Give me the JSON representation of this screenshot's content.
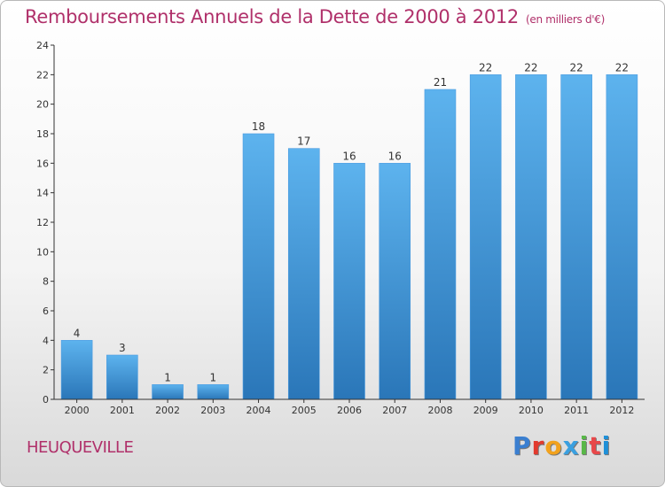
{
  "title": "Remboursements Annuels de la Dette de 2000 à 2012",
  "subtitle": "(en milliers d'€)",
  "commune": "HEUQUEVILLE",
  "logo": {
    "letters": [
      "P",
      "r",
      "o",
      "x",
      "i",
      "t",
      "i"
    ],
    "colors": [
      "#3a7fd0",
      "#e23a2e",
      "#f2a21d",
      "#3aa0e0",
      "#58b848",
      "#e8484a",
      "#1f90d8"
    ]
  },
  "colors": {
    "title": "#b0306a",
    "bar_top": "#5db3ee",
    "bar_bottom": "#2a76b8",
    "axis": "#333333"
  },
  "chart_data": {
    "type": "bar",
    "categories": [
      "2000",
      "2001",
      "2002",
      "2003",
      "2004",
      "2005",
      "2006",
      "2007",
      "2008",
      "2009",
      "2010",
      "2011",
      "2012"
    ],
    "values": [
      4,
      3,
      1,
      1,
      18,
      17,
      16,
      16,
      21,
      22,
      22,
      22,
      22
    ],
    "yticks": [
      0,
      2,
      4,
      6,
      8,
      10,
      12,
      14,
      16,
      18,
      20,
      22,
      24
    ],
    "ylim": [
      0,
      24
    ],
    "grid": false,
    "legend": "none"
  }
}
